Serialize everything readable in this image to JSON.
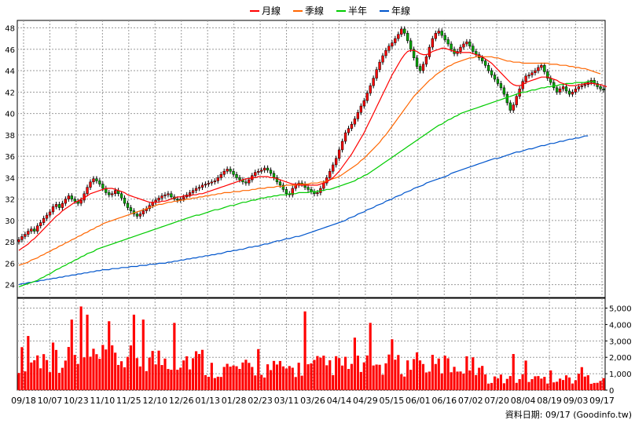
{
  "chart_data": [
    {
      "type": "line",
      "legend": {
        "placement": "top-center",
        "entries": [
          {
            "name": "月線",
            "color": "#ff0000"
          },
          {
            "name": "季線",
            "color": "#ff6600"
          },
          {
            "name": "半年",
            "color": "#00cc00"
          },
          {
            "name": "年線",
            "color": "#0055cc"
          }
        ]
      },
      "x_tick_labels": [
        "09/18",
        "10/07",
        "10/23",
        "11/10",
        "11/25",
        "12/10",
        "12/26",
        "01/13",
        "01/28",
        "02/23",
        "03/11",
        "03/26",
        "04/14",
        "04/29",
        "05/15",
        "06/01",
        "06/16",
        "07/02",
        "07/20",
        "08/04",
        "08/19",
        "09/03",
        "09/17"
      ],
      "y_tick_labels": [
        "24",
        "26",
        "28",
        "30",
        "32",
        "34",
        "36",
        "38",
        "40",
        "42",
        "44",
        "46",
        "48"
      ],
      "ylim": [
        22.8,
        48.7
      ],
      "grid": true,
      "candle_colors": {
        "up": "#ff0000",
        "down": "#00aa00"
      },
      "close": [
        28.2,
        28.5,
        28.7,
        29.0,
        29.2,
        29.0,
        29.5,
        29.8,
        30.2,
        30.5,
        30.8,
        31.3,
        31.5,
        31.2,
        31.6,
        32.0,
        32.3,
        32.0,
        31.8,
        31.6,
        31.9,
        32.5,
        33.1,
        33.6,
        33.9,
        33.7,
        33.4,
        33.0,
        32.6,
        32.4,
        32.5,
        32.8,
        32.5,
        32.1,
        31.6,
        31.2,
        30.9,
        30.6,
        30.4,
        30.6,
        30.9,
        31.1,
        31.4,
        31.7,
        31.9,
        32.1,
        32.3,
        32.4,
        32.5,
        32.2,
        32.0,
        31.9,
        32.0,
        32.2,
        32.4,
        32.6,
        32.8,
        33.0,
        33.1,
        33.3,
        33.4,
        33.5,
        33.6,
        33.7,
        34.0,
        34.3,
        34.6,
        34.8,
        34.6,
        34.3,
        34.0,
        33.8,
        33.6,
        33.5,
        33.8,
        34.2,
        34.5,
        34.6,
        34.7,
        34.9,
        34.7,
        34.4,
        34.0,
        33.6,
        33.3,
        32.9,
        32.5,
        32.4,
        33.0,
        33.3,
        33.5,
        33.4,
        33.1,
        32.9,
        32.7,
        32.5,
        32.6,
        33.0,
        33.5,
        34.0,
        34.6,
        35.2,
        35.8,
        36.6,
        37.4,
        38.2,
        38.6,
        39.0,
        39.5,
        40.1,
        40.7,
        41.2,
        41.9,
        42.6,
        43.3,
        44.1,
        44.8,
        45.4,
        45.9,
        46.3,
        46.6,
        47.0,
        47.4,
        47.9,
        47.5,
        46.8,
        46.0,
        45.2,
        44.4,
        44.0,
        44.6,
        45.3,
        46.2,
        47.0,
        47.5,
        47.7,
        47.3,
        46.9,
        46.5,
        46.0,
        45.6,
        45.8,
        46.2,
        46.5,
        46.7,
        46.3,
        45.8,
        45.5,
        45.2,
        44.9,
        44.5,
        44.0,
        43.6,
        43.2,
        42.8,
        42.4,
        41.8,
        41.0,
        40.3,
        40.8,
        41.6,
        42.3,
        43.0,
        43.5,
        43.6,
        43.8,
        44.0,
        44.3,
        44.5,
        43.9,
        43.3,
        42.9,
        42.4,
        42.0,
        42.3,
        42.5,
        42.1,
        41.8,
        42.0,
        42.3,
        42.5,
        42.6,
        42.7,
        42.9,
        43.1,
        42.8,
        42.5,
        42.3,
        42.2
      ],
      "ma_month": [
        27.2,
        27.4,
        27.6,
        27.8,
        28.1,
        28.3,
        28.6,
        28.9,
        29.2,
        29.5,
        29.8,
        30.1,
        30.4,
        30.6,
        30.9,
        31.1,
        31.3,
        31.5,
        31.7,
        31.8,
        32.0,
        32.1,
        32.3,
        32.5,
        32.6,
        32.7,
        32.8,
        32.9,
        33.0,
        33.0,
        33.0,
        32.9,
        32.8,
        32.7,
        32.6,
        32.4,
        32.3,
        32.2,
        32.1,
        32.0,
        31.9,
        31.8,
        31.7,
        31.7,
        31.7,
        31.7,
        31.8,
        31.8,
        31.9,
        32.0,
        32.1,
        32.2,
        32.2,
        32.3,
        32.3,
        32.3,
        32.4,
        32.4,
        32.5,
        32.5,
        32.6,
        32.7,
        32.8,
        32.9,
        33.0,
        33.1,
        33.2,
        33.3,
        33.4,
        33.5,
        33.6,
        33.7,
        33.8,
        33.9,
        33.9,
        34.0,
        34.0,
        34.1,
        34.1,
        34.1,
        34.1,
        34.0,
        34.0,
        33.9,
        33.8,
        33.7,
        33.6,
        33.5,
        33.4,
        33.4,
        33.3,
        33.3,
        33.3,
        33.3,
        33.3,
        33.3,
        33.3,
        33.4,
        33.5,
        33.6,
        33.8,
        34.0,
        34.3,
        34.6,
        35.0,
        35.4,
        35.8,
        36.2,
        36.7,
        37.2,
        37.7,
        38.2,
        38.8,
        39.4,
        40.0,
        40.6,
        41.2,
        41.8,
        42.4,
        43.0,
        43.6,
        44.1,
        44.6,
        45.1,
        45.5,
        45.8,
        45.9,
        45.9,
        45.8,
        45.6,
        45.5,
        45.5,
        45.6,
        45.8,
        45.9,
        46.0,
        46.1,
        46.1,
        46.0,
        45.9,
        45.8,
        45.7,
        45.7,
        45.7,
        45.7,
        45.7,
        45.6,
        45.5,
        45.4,
        45.3,
        45.1,
        44.9,
        44.7,
        44.4,
        44.1,
        43.8,
        43.5,
        43.2,
        42.9,
        42.7,
        42.6,
        42.6,
        42.7,
        42.9,
        43.0,
        43.1,
        43.2,
        43.3,
        43.4,
        43.4,
        43.4,
        43.3,
        43.2,
        43.1,
        42.9,
        42.8,
        42.7,
        42.6,
        42.6,
        42.6,
        42.7,
        42.7,
        42.8,
        42.8,
        42.8,
        42.8,
        42.7,
        42.7,
        42.6,
        42.5
      ],
      "ma_quarter": [
        25.8,
        25.9,
        26.0,
        26.1,
        26.3,
        26.4,
        26.5,
        26.7,
        26.8,
        27.0,
        27.1,
        27.3,
        27.4,
        27.6,
        27.7,
        27.9,
        28.0,
        28.2,
        28.3,
        28.5,
        28.6,
        28.8,
        28.9,
        29.1,
        29.2,
        29.4,
        29.5,
        29.7,
        29.8,
        29.9,
        30.0,
        30.1,
        30.2,
        30.3,
        30.4,
        30.5,
        30.6,
        30.7,
        30.8,
        30.9,
        31.0,
        31.1,
        31.2,
        31.3,
        31.4,
        31.5,
        31.5,
        31.6,
        31.7,
        31.7,
        31.8,
        31.8,
        31.9,
        31.9,
        32.0,
        32.0,
        32.1,
        32.1,
        32.2,
        32.2,
        32.3,
        32.3,
        32.4,
        32.4,
        32.5,
        32.5,
        32.6,
        32.6,
        32.6,
        32.7,
        32.7,
        32.7,
        32.8,
        32.8,
        32.8,
        32.9,
        32.9,
        33.0,
        33.0,
        33.0,
        33.1,
        33.1,
        33.1,
        33.2,
        33.2,
        33.2,
        33.3,
        33.3,
        33.3,
        33.3,
        33.4,
        33.4,
        33.4,
        33.4,
        33.5,
        33.5,
        33.5,
        33.6,
        33.6,
        33.7,
        33.8,
        33.9,
        34.0,
        34.1,
        34.3,
        34.5,
        34.7,
        34.9,
        35.1,
        35.3,
        35.6,
        35.8,
        36.1,
        36.4,
        36.7,
        37.0,
        37.3,
        37.7,
        38.0,
        38.4,
        38.8,
        39.2,
        39.6,
        40.0,
        40.4,
        40.8,
        41.2,
        41.6,
        41.9,
        42.2,
        42.5,
        42.8,
        43.1,
        43.3,
        43.6,
        43.8,
        44.0,
        44.2,
        44.4,
        44.5,
        44.7,
        44.8,
        44.9,
        45.0,
        45.1,
        45.2,
        45.2,
        45.3,
        45.3,
        45.3,
        45.3,
        45.3,
        45.3,
        45.2,
        45.2,
        45.1,
        45.0,
        44.9,
        44.9,
        44.8,
        44.8,
        44.8,
        44.7,
        44.7,
        44.7,
        44.7,
        44.7,
        44.7,
        44.7,
        44.7,
        44.7,
        44.6,
        44.6,
        44.6,
        44.5,
        44.5,
        44.5,
        44.4,
        44.4,
        44.3,
        44.3,
        44.2,
        44.2,
        44.1,
        44.0,
        43.9,
        43.8,
        43.7
      ],
      "ma_half_year": [
        23.8,
        23.9,
        24.0,
        24.1,
        24.2,
        24.3,
        24.4,
        24.6,
        24.7,
        24.9,
        25.0,
        25.2,
        25.4,
        25.5,
        25.7,
        25.8,
        26.0,
        26.1,
        26.3,
        26.4,
        26.6,
        26.7,
        26.9,
        27.0,
        27.1,
        27.3,
        27.4,
        27.5,
        27.6,
        27.7,
        27.8,
        27.9,
        28.0,
        28.1,
        28.2,
        28.3,
        28.4,
        28.5,
        28.6,
        28.7,
        28.8,
        28.9,
        29.0,
        29.1,
        29.2,
        29.3,
        29.4,
        29.5,
        29.6,
        29.7,
        29.8,
        29.9,
        30.0,
        30.1,
        30.2,
        30.3,
        30.4,
        30.5,
        30.5,
        30.6,
        30.7,
        30.8,
        30.9,
        31.0,
        31.0,
        31.1,
        31.2,
        31.3,
        31.4,
        31.4,
        31.5,
        31.6,
        31.7,
        31.7,
        31.8,
        31.9,
        31.9,
        32.0,
        32.1,
        32.1,
        32.2,
        32.2,
        32.3,
        32.3,
        32.4,
        32.4,
        32.4,
        32.5,
        32.5,
        32.5,
        32.6,
        32.6,
        32.6,
        32.6,
        32.7,
        32.7,
        32.7,
        32.8,
        32.8,
        32.9,
        32.9,
        33.0,
        33.1,
        33.2,
        33.3,
        33.4,
        33.5,
        33.6,
        33.7,
        33.9,
        34.0,
        34.2,
        34.3,
        34.5,
        34.7,
        34.9,
        35.1,
        35.3,
        35.5,
        35.7,
        35.9,
        36.1,
        36.3,
        36.5,
        36.7,
        36.9,
        37.1,
        37.3,
        37.5,
        37.7,
        37.9,
        38.1,
        38.3,
        38.5,
        38.7,
        38.9,
        39.0,
        39.2,
        39.4,
        39.5,
        39.7,
        39.8,
        40.0,
        40.1,
        40.2,
        40.3,
        40.4,
        40.5,
        40.6,
        40.7,
        40.8,
        40.9,
        41.0,
        41.1,
        41.2,
        41.3,
        41.4,
        41.5,
        41.6,
        41.7,
        41.8,
        41.9,
        42.0,
        42.0,
        42.1,
        42.2,
        42.2,
        42.3,
        42.4,
        42.4,
        42.5,
        42.5,
        42.6,
        42.6,
        42.7,
        42.7,
        42.8,
        42.8,
        42.8,
        42.9,
        42.9,
        42.9,
        42.9,
        43.0,
        43.0,
        43.0
      ],
      "ma_year": [
        24.0,
        24.1,
        24.1,
        24.2,
        24.2,
        24.3,
        24.3,
        24.4,
        24.4,
        24.5,
        24.5,
        24.6,
        24.6,
        24.7,
        24.7,
        24.8,
        24.8,
        24.9,
        24.9,
        25.0,
        25.0,
        25.1,
        25.1,
        25.2,
        25.2,
        25.3,
        25.3,
        25.4,
        25.4,
        25.4,
        25.5,
        25.5,
        25.5,
        25.6,
        25.6,
        25.6,
        25.7,
        25.7,
        25.7,
        25.8,
        25.8,
        25.8,
        25.9,
        25.9,
        25.9,
        26.0,
        26.0,
        26.0,
        26.1,
        26.1,
        26.2,
        26.2,
        26.3,
        26.3,
        26.4,
        26.4,
        26.5,
        26.5,
        26.6,
        26.6,
        26.7,
        26.7,
        26.8,
        26.8,
        26.9,
        26.9,
        27.0,
        27.1,
        27.1,
        27.2,
        27.2,
        27.3,
        27.3,
        27.4,
        27.5,
        27.5,
        27.6,
        27.6,
        27.7,
        27.8,
        27.8,
        27.9,
        28.0,
        28.1,
        28.1,
        28.2,
        28.3,
        28.3,
        28.4,
        28.5,
        28.5,
        28.6,
        28.7,
        28.8,
        28.9,
        29.0,
        29.1,
        29.2,
        29.3,
        29.4,
        29.5,
        29.6,
        29.7,
        29.8,
        29.9,
        30.0,
        30.2,
        30.3,
        30.4,
        30.6,
        30.7,
        30.8,
        31.0,
        31.1,
        31.2,
        31.4,
        31.5,
        31.6,
        31.8,
        31.9,
        32.0,
        32.2,
        32.3,
        32.4,
        32.6,
        32.7,
        32.8,
        33.0,
        33.1,
        33.2,
        33.3,
        33.5,
        33.6,
        33.7,
        33.8,
        33.9,
        34.0,
        34.1,
        34.2,
        34.4,
        34.5,
        34.6,
        34.7,
        34.8,
        34.9,
        35.0,
        35.1,
        35.2,
        35.3,
        35.4,
        35.5,
        35.6,
        35.7,
        35.8,
        35.8,
        35.9,
        36.0,
        36.1,
        36.2,
        36.3,
        36.4,
        36.4,
        36.5,
        36.6,
        36.7,
        36.7,
        36.8,
        36.9,
        37.0,
        37.0,
        37.1,
        37.2,
        37.2,
        37.3,
        37.4,
        37.4,
        37.5,
        37.6,
        37.6,
        37.7,
        37.7,
        37.8,
        37.9,
        37.9
      ]
    },
    {
      "type": "bar",
      "y_tick_labels": [
        "0",
        "1,000",
        "2,000",
        "3,000",
        "4,000",
        "5,000"
      ],
      "ylim": [
        0,
        5600
      ],
      "bar_color": "#ff0000",
      "volume_spikes": [
        {
          "i": 3,
          "v": 3300
        },
        {
          "i": 11,
          "v": 2900
        },
        {
          "i": 17,
          "v": 4300
        },
        {
          "i": 20,
          "v": 5100
        },
        {
          "i": 22,
          "v": 4600
        },
        {
          "i": 29,
          "v": 4200
        },
        {
          "i": 37,
          "v": 4600
        },
        {
          "i": 40,
          "v": 4300
        },
        {
          "i": 50,
          "v": 4100
        },
        {
          "i": 58,
          "v": 2200
        },
        {
          "i": 77,
          "v": 2500
        },
        {
          "i": 92,
          "v": 4800
        },
        {
          "i": 108,
          "v": 3200
        },
        {
          "i": 113,
          "v": 4100
        },
        {
          "i": 120,
          "v": 3100
        },
        {
          "i": 128,
          "v": 2300
        },
        {
          "i": 137,
          "v": 2100
        },
        {
          "i": 146,
          "v": 2000
        },
        {
          "i": 159,
          "v": 2200
        },
        {
          "i": 163,
          "v": 1800
        },
        {
          "i": 171,
          "v": 1200
        },
        {
          "i": 181,
          "v": 1400
        }
      ]
    }
  ],
  "footer": {
    "source_text": "資料日期: 09/17  (Goodinfo.tw)"
  }
}
